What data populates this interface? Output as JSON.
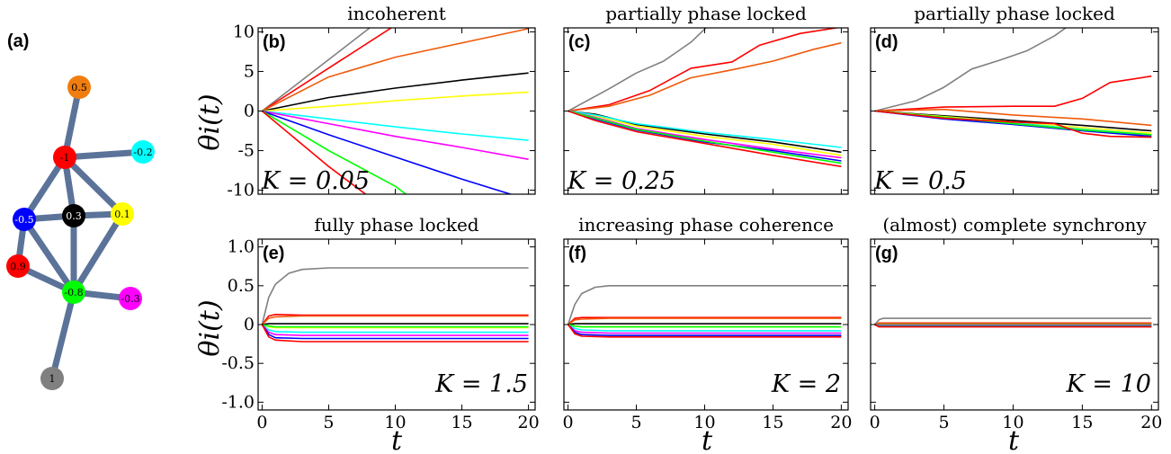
{
  "network": {
    "label": "(a)",
    "nodes": [
      {
        "id": "n05",
        "text": "0.5",
        "color": "#f07d0f"
      },
      {
        "id": "nm1",
        "text": "-1",
        "color": "#ff0000"
      },
      {
        "id": "nm02",
        "text": "-0.2",
        "color": "#00ffff"
      },
      {
        "id": "nm05",
        "text": "-0.5",
        "color": "#0000ff"
      },
      {
        "id": "n03",
        "text": "0.3",
        "color": "#000000"
      },
      {
        "id": "n01",
        "text": "0.1",
        "color": "#ffff00"
      },
      {
        "id": "n09",
        "text": "0.9",
        "color": "#ff0000"
      },
      {
        "id": "nm08",
        "text": "-0.8",
        "color": "#00ff00"
      },
      {
        "id": "nm03",
        "text": "-0.3",
        "color": "#ff00ff"
      },
      {
        "id": "n1",
        "text": "1",
        "color": "#808080"
      }
    ],
    "edge_color": "#5b7399"
  },
  "series_colors": [
    "#808080",
    "#ff0000",
    "#f05a0a",
    "#000000",
    "#ffff00",
    "#00ffff",
    "#ff00ff",
    "#0000ff",
    "#00ff00",
    "#ff0000"
  ],
  "shared": {
    "x_ticks": [
      "0",
      "5",
      "10",
      "15",
      "20"
    ],
    "xlabel": "t",
    "ylabel": "θi(t)"
  },
  "chart_data": [
    {
      "type": "line",
      "panel": "(b)",
      "title": "incoherent",
      "annotation": "K = 0.05",
      "xlim": [
        -0.3,
        20.5
      ],
      "ylim": [
        -10.5,
        10.5
      ],
      "y_ticks": [
        "10",
        "5",
        "0",
        "-5",
        "-10"
      ],
      "y_tick_values": [
        10,
        5,
        0,
        -5,
        -10
      ],
      "show_x_tick_labels": false,
      "series": [
        {
          "x": [
            0,
            10
          ],
          "values": [
            0,
            13
          ]
        },
        {
          "x": [
            0,
            12
          ],
          "values": [
            0,
            13
          ]
        },
        {
          "x": [
            0,
            5,
            10,
            20
          ],
          "values": [
            0,
            4.3,
            6.8,
            10.4
          ]
        },
        {
          "x": [
            0,
            5,
            10,
            15,
            20
          ],
          "values": [
            0,
            1.7,
            2.9,
            3.9,
            4.8
          ]
        },
        {
          "x": [
            0,
            5,
            10,
            15,
            20
          ],
          "values": [
            0,
            0.6,
            1.3,
            1.9,
            2.4
          ]
        },
        {
          "x": [
            0,
            5,
            10,
            15,
            20
          ],
          "values": [
            0,
            -1.0,
            -2.0,
            -2.9,
            -3.7
          ]
        },
        {
          "x": [
            0,
            5,
            10,
            15,
            20
          ],
          "values": [
            0,
            -1.6,
            -3.2,
            -4.6,
            -6.1
          ]
        },
        {
          "x": [
            0,
            5,
            10,
            15,
            20
          ],
          "values": [
            0,
            -3.0,
            -5.8,
            -8.6,
            -11.2
          ]
        },
        {
          "x": [
            0,
            5,
            10,
            12
          ],
          "values": [
            0,
            -5.0,
            -9.5,
            -12
          ]
        },
        {
          "x": [
            0,
            5,
            8,
            10
          ],
          "values": [
            0,
            -7.0,
            -10.8,
            -13
          ]
        }
      ]
    },
    {
      "type": "line",
      "panel": "(c)",
      "title": "partially phase locked",
      "annotation": "K = 0.25",
      "xlim": [
        -0.3,
        20.5
      ],
      "ylim": [
        -10.5,
        10.5
      ],
      "y_ticks": [],
      "y_tick_values": [
        10,
        5,
        0,
        -5,
        -10
      ],
      "show_x_tick_labels": false,
      "series": [
        {
          "x": [
            0,
            3,
            5,
            7,
            9,
            11
          ],
          "values": [
            0,
            2.8,
            4.8,
            6.3,
            8.7,
            12
          ]
        },
        {
          "x": [
            0,
            3,
            6,
            9,
            12,
            14,
            17,
            20
          ],
          "values": [
            0,
            0.8,
            2.6,
            5.4,
            6.2,
            8.3,
            9.8,
            10.6
          ]
        },
        {
          "x": [
            0,
            3,
            6,
            9,
            12,
            15,
            18,
            20
          ],
          "values": [
            0,
            0.6,
            2.0,
            4.2,
            5.2,
            6.3,
            7.8,
            8.6
          ]
        },
        {
          "x": [
            0,
            2,
            5,
            10,
            15,
            20
          ],
          "values": [
            0,
            -0.4,
            -1.7,
            -2.9,
            -3.9,
            -5.2
          ]
        },
        {
          "x": [
            0,
            2,
            5,
            10,
            15,
            20
          ],
          "values": [
            0,
            -0.6,
            -1.9,
            -3.2,
            -4.2,
            -5.6
          ]
        },
        {
          "x": [
            0,
            2,
            5,
            10,
            15,
            20
          ],
          "values": [
            0,
            -0.5,
            -1.6,
            -2.7,
            -3.6,
            -4.6
          ]
        },
        {
          "x": [
            0,
            2,
            5,
            10,
            15,
            20
          ],
          "values": [
            0,
            -0.8,
            -2.2,
            -3.6,
            -4.8,
            -5.9
          ]
        },
        {
          "x": [
            0,
            2,
            5,
            10,
            15,
            20
          ],
          "values": [
            0,
            -1.0,
            -2.4,
            -3.9,
            -5.0,
            -6.3
          ]
        },
        {
          "x": [
            0,
            2,
            5,
            10,
            15,
            20
          ],
          "values": [
            0,
            -0.9,
            -2.3,
            -3.8,
            -5.2,
            -6.6
          ]
        },
        {
          "x": [
            0,
            2,
            5,
            10,
            15,
            20
          ],
          "values": [
            0,
            -1.2,
            -2.6,
            -4.1,
            -5.6,
            -7.0
          ]
        }
      ]
    },
    {
      "type": "line",
      "panel": "(d)",
      "title": "partially phase locked",
      "annotation": "K = 0.5",
      "xlim": [
        -0.3,
        20.5
      ],
      "ylim": [
        -10.5,
        10.5
      ],
      "y_ticks": [],
      "y_tick_values": [
        10,
        5,
        0,
        -5,
        -10
      ],
      "show_x_tick_labels": false,
      "series": [
        {
          "x": [
            0,
            3,
            5,
            7,
            9,
            11,
            13,
            15
          ],
          "values": [
            0,
            1.3,
            3.0,
            5.3,
            6.4,
            7.6,
            9.5,
            12
          ]
        },
        {
          "x": [
            0,
            5,
            10,
            13,
            15,
            17,
            20
          ],
          "values": [
            0,
            0.5,
            0.6,
            0.6,
            1.6,
            3.6,
            4.4
          ]
        },
        {
          "x": [
            0,
            5,
            10,
            15,
            20
          ],
          "values": [
            0,
            0.2,
            -0.5,
            -1.0,
            -1.8
          ]
        },
        {
          "x": [
            0,
            5,
            10,
            15,
            20
          ],
          "values": [
            0,
            -0.6,
            -1.2,
            -1.8,
            -2.5
          ]
        },
        {
          "x": [
            0,
            5,
            10,
            15,
            20
          ],
          "values": [
            0,
            -0.7,
            -1.4,
            -2.1,
            -2.8
          ]
        },
        {
          "x": [
            0,
            5,
            10,
            15,
            20
          ],
          "values": [
            0,
            -0.8,
            -1.5,
            -2.3,
            -3.0
          ]
        },
        {
          "x": [
            0,
            5,
            10,
            15,
            20
          ],
          "values": [
            0,
            -0.9,
            -1.6,
            -2.4,
            -3.1
          ]
        },
        {
          "x": [
            0,
            5,
            10,
            15,
            20
          ],
          "values": [
            0,
            -1.0,
            -1.7,
            -2.5,
            -3.2
          ]
        },
        {
          "x": [
            0,
            5,
            10,
            15,
            20
          ],
          "values": [
            0,
            -0.8,
            -1.6,
            -2.4,
            -3.0
          ]
        },
        {
          "x": [
            0,
            5,
            10,
            13,
            15,
            17,
            20
          ],
          "values": [
            0,
            -0.9,
            -1.4,
            -1.6,
            -2.8,
            -3.2,
            -3.3
          ]
        }
      ]
    },
    {
      "type": "line",
      "panel": "(e)",
      "title": "fully phase locked",
      "annotation": "K = 1.5",
      "xlim": [
        -0.3,
        20.5
      ],
      "ylim": [
        -1.1,
        1.1
      ],
      "y_ticks": [
        "1.0",
        "0.5",
        "0",
        "-0.5",
        "-1.0"
      ],
      "y_tick_values": [
        1,
        0.5,
        0,
        -0.5,
        -1
      ],
      "show_x_tick_labels": true,
      "series": [
        {
          "x": [
            0,
            0.5,
            1,
            2,
            3,
            5,
            20
          ],
          "values": [
            0,
            0.35,
            0.52,
            0.66,
            0.71,
            0.73,
            0.73
          ]
        },
        {
          "x": [
            0,
            0.5,
            1,
            3,
            20
          ],
          "values": [
            0,
            0.11,
            0.13,
            0.12,
            0.12
          ]
        },
        {
          "x": [
            0,
            0.5,
            1,
            3,
            20
          ],
          "values": [
            0,
            0.08,
            0.1,
            0.11,
            0.11
          ]
        },
        {
          "x": [
            0,
            0.5,
            1,
            3,
            20
          ],
          "values": [
            0,
            0.01,
            0.01,
            0.01,
            0.01
          ]
        },
        {
          "x": [
            0,
            0.5,
            1,
            3,
            20
          ],
          "values": [
            0,
            -0.03,
            -0.04,
            -0.04,
            -0.04
          ]
        },
        {
          "x": [
            0,
            0.5,
            1,
            3,
            20
          ],
          "values": [
            0,
            -0.07,
            -0.09,
            -0.1,
            -0.1
          ]
        },
        {
          "x": [
            0,
            0.5,
            1,
            3,
            20
          ],
          "values": [
            0,
            -0.1,
            -0.13,
            -0.14,
            -0.14
          ]
        },
        {
          "x": [
            0,
            0.5,
            1,
            3,
            20
          ],
          "values": [
            0,
            -0.13,
            -0.17,
            -0.18,
            -0.18
          ]
        },
        {
          "x": [
            0,
            0.5,
            1,
            3,
            20
          ],
          "values": [
            0,
            -0.02,
            -0.03,
            -0.03,
            -0.03
          ]
        },
        {
          "x": [
            0,
            0.5,
            1,
            3,
            20
          ],
          "values": [
            0,
            -0.16,
            -0.2,
            -0.22,
            -0.22
          ]
        }
      ]
    },
    {
      "type": "line",
      "panel": "(f)",
      "title": "increasing phase coherence",
      "annotation": "K = 2",
      "xlim": [
        -0.3,
        20.5
      ],
      "ylim": [
        -1.1,
        1.1
      ],
      "y_ticks": [],
      "y_tick_values": [
        1,
        0.5,
        0,
        -0.5,
        -1
      ],
      "show_x_tick_labels": true,
      "series": [
        {
          "x": [
            0,
            0.5,
            1,
            2,
            3,
            5,
            20
          ],
          "values": [
            0,
            0.26,
            0.4,
            0.48,
            0.5,
            0.5,
            0.5
          ]
        },
        {
          "x": [
            0,
            0.5,
            1,
            3,
            20
          ],
          "values": [
            0,
            0.08,
            0.09,
            0.09,
            0.09
          ]
        },
        {
          "x": [
            0,
            0.5,
            1,
            3,
            20
          ],
          "values": [
            0,
            0.06,
            0.07,
            0.08,
            0.08
          ]
        },
        {
          "x": [
            0,
            0.5,
            1,
            3,
            20
          ],
          "values": [
            0,
            0.01,
            0.01,
            0.01,
            0.01
          ]
        },
        {
          "x": [
            0,
            0.5,
            1,
            3,
            20
          ],
          "values": [
            0,
            -0.02,
            -0.03,
            -0.03,
            -0.03
          ]
        },
        {
          "x": [
            0,
            0.5,
            1,
            3,
            20
          ],
          "values": [
            0,
            -0.05,
            -0.07,
            -0.08,
            -0.08
          ]
        },
        {
          "x": [
            0,
            0.5,
            1,
            3,
            20
          ],
          "values": [
            0,
            -0.08,
            -0.1,
            -0.11,
            -0.11
          ]
        },
        {
          "x": [
            0,
            0.5,
            1,
            3,
            20
          ],
          "values": [
            0,
            -0.1,
            -0.13,
            -0.14,
            -0.14
          ]
        },
        {
          "x": [
            0,
            0.5,
            1,
            3,
            20
          ],
          "values": [
            0,
            -0.02,
            -0.03,
            -0.03,
            -0.03
          ]
        },
        {
          "x": [
            0,
            0.5,
            1,
            3,
            20
          ],
          "values": [
            0,
            -0.12,
            -0.15,
            -0.16,
            -0.16
          ]
        }
      ]
    },
    {
      "type": "line",
      "panel": "(g)",
      "title": "(almost) complete synchrony",
      "annotation": "K = 10",
      "xlim": [
        -0.3,
        20.5
      ],
      "ylim": [
        -1.1,
        1.1
      ],
      "y_ticks": [],
      "y_tick_values": [
        1,
        0.5,
        0,
        -0.5,
        -1
      ],
      "show_x_tick_labels": true,
      "series": [
        {
          "x": [
            0,
            0.3,
            0.6,
            20
          ],
          "values": [
            0,
            0.06,
            0.08,
            0.08
          ]
        },
        {
          "x": [
            0,
            0.3,
            20
          ],
          "values": [
            0,
            0.02,
            0.02
          ]
        },
        {
          "x": [
            0,
            0.3,
            20
          ],
          "values": [
            0,
            0.015,
            0.015
          ]
        },
        {
          "x": [
            0,
            0.3,
            20
          ],
          "values": [
            0,
            0.0,
            0.0
          ]
        },
        {
          "x": [
            0,
            0.3,
            20
          ],
          "values": [
            0,
            -0.005,
            -0.005
          ]
        },
        {
          "x": [
            0,
            0.3,
            20
          ],
          "values": [
            0,
            -0.01,
            -0.01
          ]
        },
        {
          "x": [
            0,
            0.3,
            20
          ],
          "values": [
            0,
            -0.015,
            -0.015
          ]
        },
        {
          "x": [
            0,
            0.3,
            20
          ],
          "values": [
            0,
            -0.02,
            -0.02
          ]
        },
        {
          "x": [
            0,
            0.3,
            20
          ],
          "values": [
            0,
            -0.025,
            -0.025
          ]
        },
        {
          "x": [
            0,
            0.3,
            20
          ],
          "values": [
            0,
            -0.03,
            -0.03
          ]
        }
      ]
    }
  ]
}
